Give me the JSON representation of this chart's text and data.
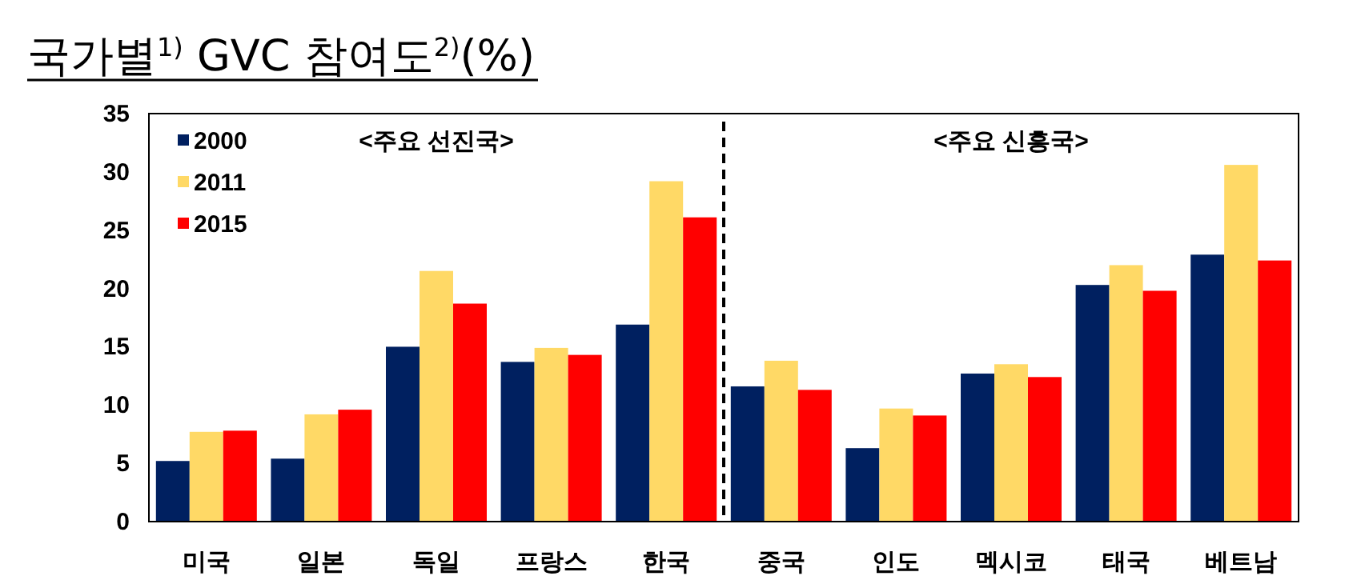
{
  "chart_data": {
    "type": "bar",
    "title": "국가별$^{1)}$ GVC 참여도$^{2)}$(%)",
    "categories": [
      "미국",
      "일본",
      "독일",
      "프랑스",
      "한국",
      "중국",
      "인도",
      "멕시코",
      "태국",
      "베트남"
    ],
    "series": [
      {
        "name": "2000",
        "color": "#002060",
        "values": [
          5.2,
          5.4,
          15.0,
          13.7,
          16.9,
          11.6,
          6.3,
          12.7,
          20.3,
          22.9
        ]
      },
      {
        "name": "2011",
        "color": "#ffd966",
        "values": [
          7.7,
          9.2,
          21.5,
          14.9,
          29.2,
          13.8,
          9.7,
          13.5,
          22.0,
          30.6
        ]
      },
      {
        "name": "2015",
        "color": "#ff0000",
        "values": [
          7.8,
          9.6,
          18.7,
          14.3,
          26.1,
          11.3,
          9.1,
          12.4,
          19.8,
          22.4
        ]
      }
    ],
    "ylim": [
      0,
      35
    ],
    "yticks": [
      0,
      5,
      10,
      15,
      20,
      25,
      30,
      35
    ],
    "annotations": [
      "<주요 선진국>",
      "<주요 신흥국>"
    ],
    "legend": "top left",
    "grid": false
  }
}
